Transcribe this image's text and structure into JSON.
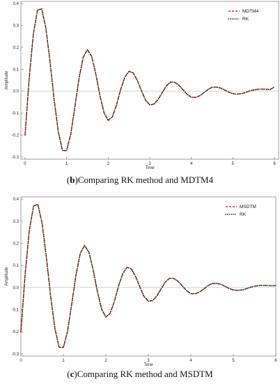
{
  "chart_data": [
    {
      "type": "line",
      "panel": "b",
      "caption_letter": "b",
      "caption_text": "Comparing RK method and MDTM4",
      "xlabel": "Time",
      "ylabel": "Amplitude",
      "xlim": [
        -0.1,
        6.1
      ],
      "ylim": [
        -0.31,
        0.41
      ],
      "xticks": [
        0,
        1,
        2,
        3,
        4,
        5,
        6
      ],
      "yticks": [
        -0.3,
        -0.2,
        -0.1,
        0.0,
        0.1,
        0.2,
        0.3,
        0.4
      ],
      "ytick_labels": [
        "-0.3",
        "-0.2",
        "-0.1",
        "0.0",
        "0.1",
        "0.2",
        "0.3",
        "0.4"
      ],
      "grid": false,
      "legend": "top-right",
      "series": [
        {
          "name": "MDTM4",
          "style": "dashed",
          "color": "#c0392b",
          "x": [
            0.0,
            0.1,
            0.2,
            0.3,
            0.4,
            0.5,
            0.6,
            0.7,
            0.8,
            0.9,
            1.0,
            1.1,
            1.2,
            1.3,
            1.4,
            1.5,
            1.6,
            1.7,
            1.8,
            1.9,
            2.0,
            2.1,
            2.2,
            2.3,
            2.4,
            2.5,
            2.6,
            2.7,
            2.8,
            2.9,
            3.0,
            3.1,
            3.2,
            3.3,
            3.4,
            3.5,
            3.6,
            3.7,
            3.8,
            3.9,
            4.0,
            4.1,
            4.2,
            4.3,
            4.4,
            4.5,
            4.6,
            4.7,
            4.8,
            4.9,
            5.0,
            5.1,
            5.2,
            5.3,
            5.4,
            5.5,
            5.6,
            5.7,
            5.8,
            5.9,
            6.0
          ],
          "y": [
            -0.2,
            0.06,
            0.262,
            0.37,
            0.376,
            0.289,
            0.137,
            -0.039,
            -0.185,
            -0.27,
            -0.271,
            -0.196,
            -0.07,
            0.061,
            0.156,
            0.19,
            0.16,
            0.081,
            -0.018,
            -0.098,
            -0.133,
            -0.117,
            -0.063,
            0.008,
            0.064,
            0.091,
            0.084,
            0.05,
            0.003,
            -0.041,
            -0.062,
            -0.059,
            -0.038,
            -0.006,
            0.025,
            0.042,
            0.041,
            0.028,
            0.007,
            -0.014,
            -0.028,
            -0.028,
            -0.021,
            -0.007,
            0.008,
            0.018,
            0.019,
            0.015,
            0.006,
            -0.004,
            -0.011,
            -0.013,
            -0.011,
            -0.006,
            0.001,
            0.006,
            0.009,
            0.01,
            0.009,
            0.008,
            0.02
          ]
        },
        {
          "name": "RK",
          "style": "dotted",
          "color": "#111111",
          "x": [
            0.0,
            0.1,
            0.2,
            0.3,
            0.4,
            0.5,
            0.6,
            0.7,
            0.8,
            0.9,
            1.0,
            1.1,
            1.2,
            1.3,
            1.4,
            1.5,
            1.6,
            1.7,
            1.8,
            1.9,
            2.0,
            2.1,
            2.2,
            2.3,
            2.4,
            2.5,
            2.6,
            2.7,
            2.8,
            2.9,
            3.0,
            3.1,
            3.2,
            3.3,
            3.4,
            3.5,
            3.6,
            3.7,
            3.8,
            3.9,
            4.0,
            4.1,
            4.2,
            4.3,
            4.4,
            4.5,
            4.6,
            4.7,
            4.8,
            4.9,
            5.0,
            5.1,
            5.2,
            5.3,
            5.4,
            5.5,
            5.6,
            5.7,
            5.8,
            5.9,
            6.0
          ],
          "y": [
            -0.2,
            0.06,
            0.262,
            0.37,
            0.376,
            0.289,
            0.137,
            -0.039,
            -0.185,
            -0.27,
            -0.271,
            -0.196,
            -0.07,
            0.061,
            0.156,
            0.19,
            0.16,
            0.081,
            -0.018,
            -0.098,
            -0.133,
            -0.117,
            -0.063,
            0.008,
            0.064,
            0.091,
            0.084,
            0.05,
            0.003,
            -0.041,
            -0.062,
            -0.059,
            -0.038,
            -0.006,
            0.025,
            0.042,
            0.041,
            0.028,
            0.007,
            -0.014,
            -0.028,
            -0.028,
            -0.021,
            -0.007,
            0.008,
            0.018,
            0.019,
            0.015,
            0.006,
            -0.004,
            -0.011,
            -0.013,
            -0.011,
            -0.006,
            0.001,
            0.006,
            0.009,
            0.01,
            0.009,
            0.008,
            0.02
          ]
        }
      ]
    },
    {
      "type": "line",
      "panel": "c",
      "caption_letter": "c",
      "caption_text": "Comparing RK method and MSDTM",
      "xlabel": "Time",
      "ylabel": "Amplitude",
      "xlim": [
        0.0,
        6.0
      ],
      "ylim": [
        -0.31,
        0.41
      ],
      "xticks": [
        0,
        1,
        2,
        3,
        4,
        5,
        6
      ],
      "yticks": [
        -0.3,
        -0.2,
        -0.1,
        0.0,
        0.1,
        0.2,
        0.3,
        0.4
      ],
      "ytick_labels": [
        "-0.3",
        "-0.2",
        "-0.1",
        "0.0",
        "0.1",
        "0.2",
        "0.3",
        "0.4"
      ],
      "grid": false,
      "legend": "top-right",
      "series": [
        {
          "name": "MSDTM",
          "style": "dashed",
          "color": "#c0392b",
          "x": [
            0.0,
            0.1,
            0.2,
            0.3,
            0.4,
            0.5,
            0.6,
            0.7,
            0.8,
            0.9,
            1.0,
            1.1,
            1.2,
            1.3,
            1.4,
            1.5,
            1.6,
            1.7,
            1.8,
            1.9,
            2.0,
            2.1,
            2.2,
            2.3,
            2.4,
            2.5,
            2.6,
            2.7,
            2.8,
            2.9,
            3.0,
            3.1,
            3.2,
            3.3,
            3.4,
            3.5,
            3.6,
            3.7,
            3.8,
            3.9,
            4.0,
            4.1,
            4.2,
            4.3,
            4.4,
            4.5,
            4.6,
            4.7,
            4.8,
            4.9,
            5.0,
            5.1,
            5.2,
            5.3,
            5.4,
            5.5,
            5.6,
            5.7,
            5.8,
            5.9,
            6.0
          ],
          "y": [
            -0.2,
            0.06,
            0.262,
            0.37,
            0.376,
            0.289,
            0.137,
            -0.039,
            -0.185,
            -0.27,
            -0.271,
            -0.196,
            -0.07,
            0.061,
            0.156,
            0.19,
            0.16,
            0.081,
            -0.018,
            -0.098,
            -0.133,
            -0.117,
            -0.063,
            0.008,
            0.064,
            0.091,
            0.084,
            0.05,
            0.003,
            -0.041,
            -0.062,
            -0.059,
            -0.038,
            -0.006,
            0.025,
            0.042,
            0.041,
            0.028,
            0.007,
            -0.014,
            -0.028,
            -0.028,
            -0.021,
            -0.007,
            0.008,
            0.018,
            0.019,
            0.015,
            0.006,
            -0.004,
            -0.011,
            -0.013,
            -0.011,
            -0.006,
            0.001,
            0.006,
            0.009,
            0.01,
            0.009,
            0.008,
            0.009
          ]
        },
        {
          "name": "RK",
          "style": "dotted",
          "color": "#111111",
          "x": [
            0.0,
            0.1,
            0.2,
            0.3,
            0.4,
            0.5,
            0.6,
            0.7,
            0.8,
            0.9,
            1.0,
            1.1,
            1.2,
            1.3,
            1.4,
            1.5,
            1.6,
            1.7,
            1.8,
            1.9,
            2.0,
            2.1,
            2.2,
            2.3,
            2.4,
            2.5,
            2.6,
            2.7,
            2.8,
            2.9,
            3.0,
            3.1,
            3.2,
            3.3,
            3.4,
            3.5,
            3.6,
            3.7,
            3.8,
            3.9,
            4.0,
            4.1,
            4.2,
            4.3,
            4.4,
            4.5,
            4.6,
            4.7,
            4.8,
            4.9,
            5.0,
            5.1,
            5.2,
            5.3,
            5.4,
            5.5,
            5.6,
            5.7,
            5.8,
            5.9,
            6.0
          ],
          "y": [
            -0.2,
            0.06,
            0.262,
            0.37,
            0.376,
            0.289,
            0.137,
            -0.039,
            -0.185,
            -0.27,
            -0.271,
            -0.196,
            -0.07,
            0.061,
            0.156,
            0.19,
            0.16,
            0.081,
            -0.018,
            -0.098,
            -0.133,
            -0.117,
            -0.063,
            0.008,
            0.064,
            0.091,
            0.084,
            0.05,
            0.003,
            -0.041,
            -0.062,
            -0.059,
            -0.038,
            -0.006,
            0.025,
            0.042,
            0.041,
            0.028,
            0.007,
            -0.014,
            -0.028,
            -0.028,
            -0.021,
            -0.007,
            0.008,
            0.018,
            0.019,
            0.015,
            0.006,
            -0.004,
            -0.011,
            -0.013,
            -0.011,
            -0.006,
            0.001,
            0.006,
            0.009,
            0.01,
            0.009,
            0.008,
            0.009
          ]
        }
      ]
    }
  ]
}
